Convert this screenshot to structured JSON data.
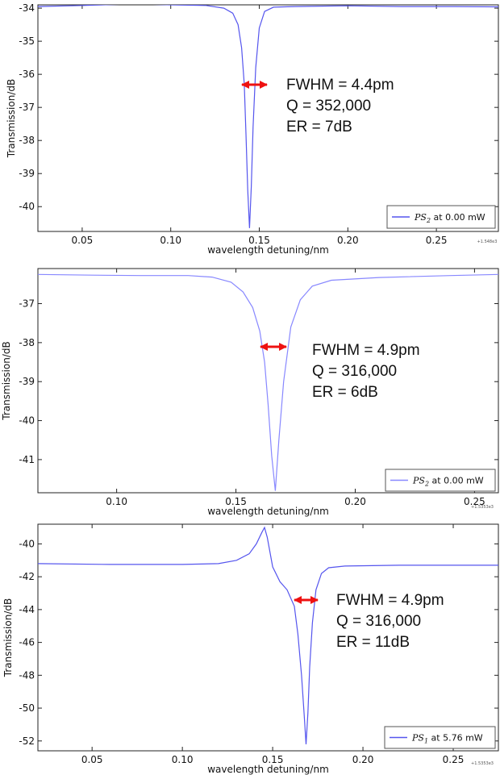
{
  "chart_data": [
    {
      "type": "line",
      "xlabel": "wavelength detuning/nm",
      "ylabel": "Transmission/dB",
      "xlim": [
        0.025,
        0.285
      ],
      "ylim": [
        -40.75,
        -33.9
      ],
      "xticks": [
        "0.05",
        "0.10",
        "0.15",
        "0.20",
        "0.25"
      ],
      "yticks": [
        "-34",
        "-35",
        "-36",
        "-37",
        "-38",
        "-39",
        "-40"
      ],
      "offset_label": "+1.548e3",
      "legend": {
        "symbol": "PS",
        "sub": "2",
        "text": " at 0.00 mW",
        "placement": "lower-right"
      },
      "annotations": [
        "FWHM = 4.4pm",
        "Q = 352,000",
        "ER = 7dB"
      ],
      "grid": false,
      "series": [
        {
          "color": "#5555ee",
          "x": [
            0.025,
            0.05,
            0.08,
            0.1,
            0.12,
            0.13,
            0.135,
            0.138,
            0.14,
            0.1415,
            0.1425,
            0.1435,
            0.1445,
            0.1455,
            0.1465,
            0.148,
            0.15,
            0.153,
            0.158,
            0.17,
            0.2,
            0.23,
            0.26,
            0.285
          ],
          "y": [
            -33.95,
            -33.92,
            -33.87,
            -33.9,
            -33.92,
            -34.0,
            -34.15,
            -34.5,
            -35.2,
            -36.3,
            -37.8,
            -39.5,
            -40.65,
            -39.4,
            -37.6,
            -35.8,
            -34.6,
            -34.1,
            -33.97,
            -33.95,
            -33.93,
            -33.95,
            -33.95,
            -33.96
          ]
        }
      ]
    },
    {
      "type": "line",
      "xlabel": "wavelength detuning/nm",
      "ylabel": "Transmission/dB",
      "xlim": [
        0.067,
        0.26
      ],
      "ylim": [
        -41.85,
        -36.1
      ],
      "xticks": [
        "0.10",
        "0.15",
        "0.20",
        "0.25"
      ],
      "yticks": [
        "-37",
        "-38",
        "-39",
        "-40",
        "-41"
      ],
      "offset_label": "+1.5353e3",
      "legend": {
        "symbol": "PS",
        "sub": "2",
        "text": " at 0.00 mW",
        "placement": "lower-right"
      },
      "annotations": [
        "FWHM = 4.9pm",
        "Q = 316,000",
        "ER = 6dB"
      ],
      "grid": false,
      "series": [
        {
          "color": "#8888ff",
          "x": [
            0.067,
            0.09,
            0.11,
            0.13,
            0.14,
            0.148,
            0.153,
            0.157,
            0.16,
            0.162,
            0.1635,
            0.165,
            0.1665,
            0.168,
            0.17,
            0.173,
            0.177,
            0.182,
            0.19,
            0.21,
            0.24,
            0.26
          ],
          "y": [
            -36.25,
            -36.27,
            -36.28,
            -36.28,
            -36.32,
            -36.45,
            -36.7,
            -37.1,
            -37.7,
            -38.5,
            -39.6,
            -40.9,
            -41.8,
            -40.5,
            -39.0,
            -37.6,
            -36.9,
            -36.55,
            -36.4,
            -36.33,
            -36.28,
            -36.25
          ]
        }
      ]
    },
    {
      "type": "line",
      "xlabel": "wavelength detuning/nm",
      "ylabel": "Transmission/dB",
      "xlim": [
        0.02,
        0.275
      ],
      "ylim": [
        -52.6,
        -38.8
      ],
      "xticks": [
        "0.05",
        "0.10",
        "0.15",
        "0.20",
        "0.25"
      ],
      "yticks": [
        "-40",
        "-42",
        "-44",
        "-46",
        "-48",
        "-50",
        "-52"
      ],
      "offset_label": "+1.5353e3",
      "legend": {
        "symbol": "PS",
        "sub": "1",
        "text": " at 5.76 mW",
        "placement": "lower-right"
      },
      "annotations": [
        "FWHM = 4.9pm",
        "Q = 316,000",
        "ER = 11dB"
      ],
      "grid": false,
      "series": [
        {
          "color": "#5555ee",
          "x": [
            0.02,
            0.06,
            0.1,
            0.12,
            0.13,
            0.137,
            0.141,
            0.144,
            0.1455,
            0.147,
            0.15,
            0.154,
            0.158,
            0.162,
            0.164,
            0.166,
            0.1675,
            0.1685,
            0.1695,
            0.1705,
            0.172,
            0.174,
            0.177,
            0.181,
            0.19,
            0.22,
            0.25,
            0.275
          ],
          "y": [
            -41.2,
            -41.25,
            -41.25,
            -41.2,
            -41.0,
            -40.6,
            -40.0,
            -39.3,
            -39.0,
            -39.6,
            -41.4,
            -42.3,
            -42.8,
            -43.8,
            -45.5,
            -48.0,
            -50.5,
            -52.2,
            -50.3,
            -47.5,
            -44.8,
            -42.8,
            -41.8,
            -41.45,
            -41.35,
            -41.3,
            -41.3,
            -41.3
          ]
        }
      ]
    }
  ]
}
